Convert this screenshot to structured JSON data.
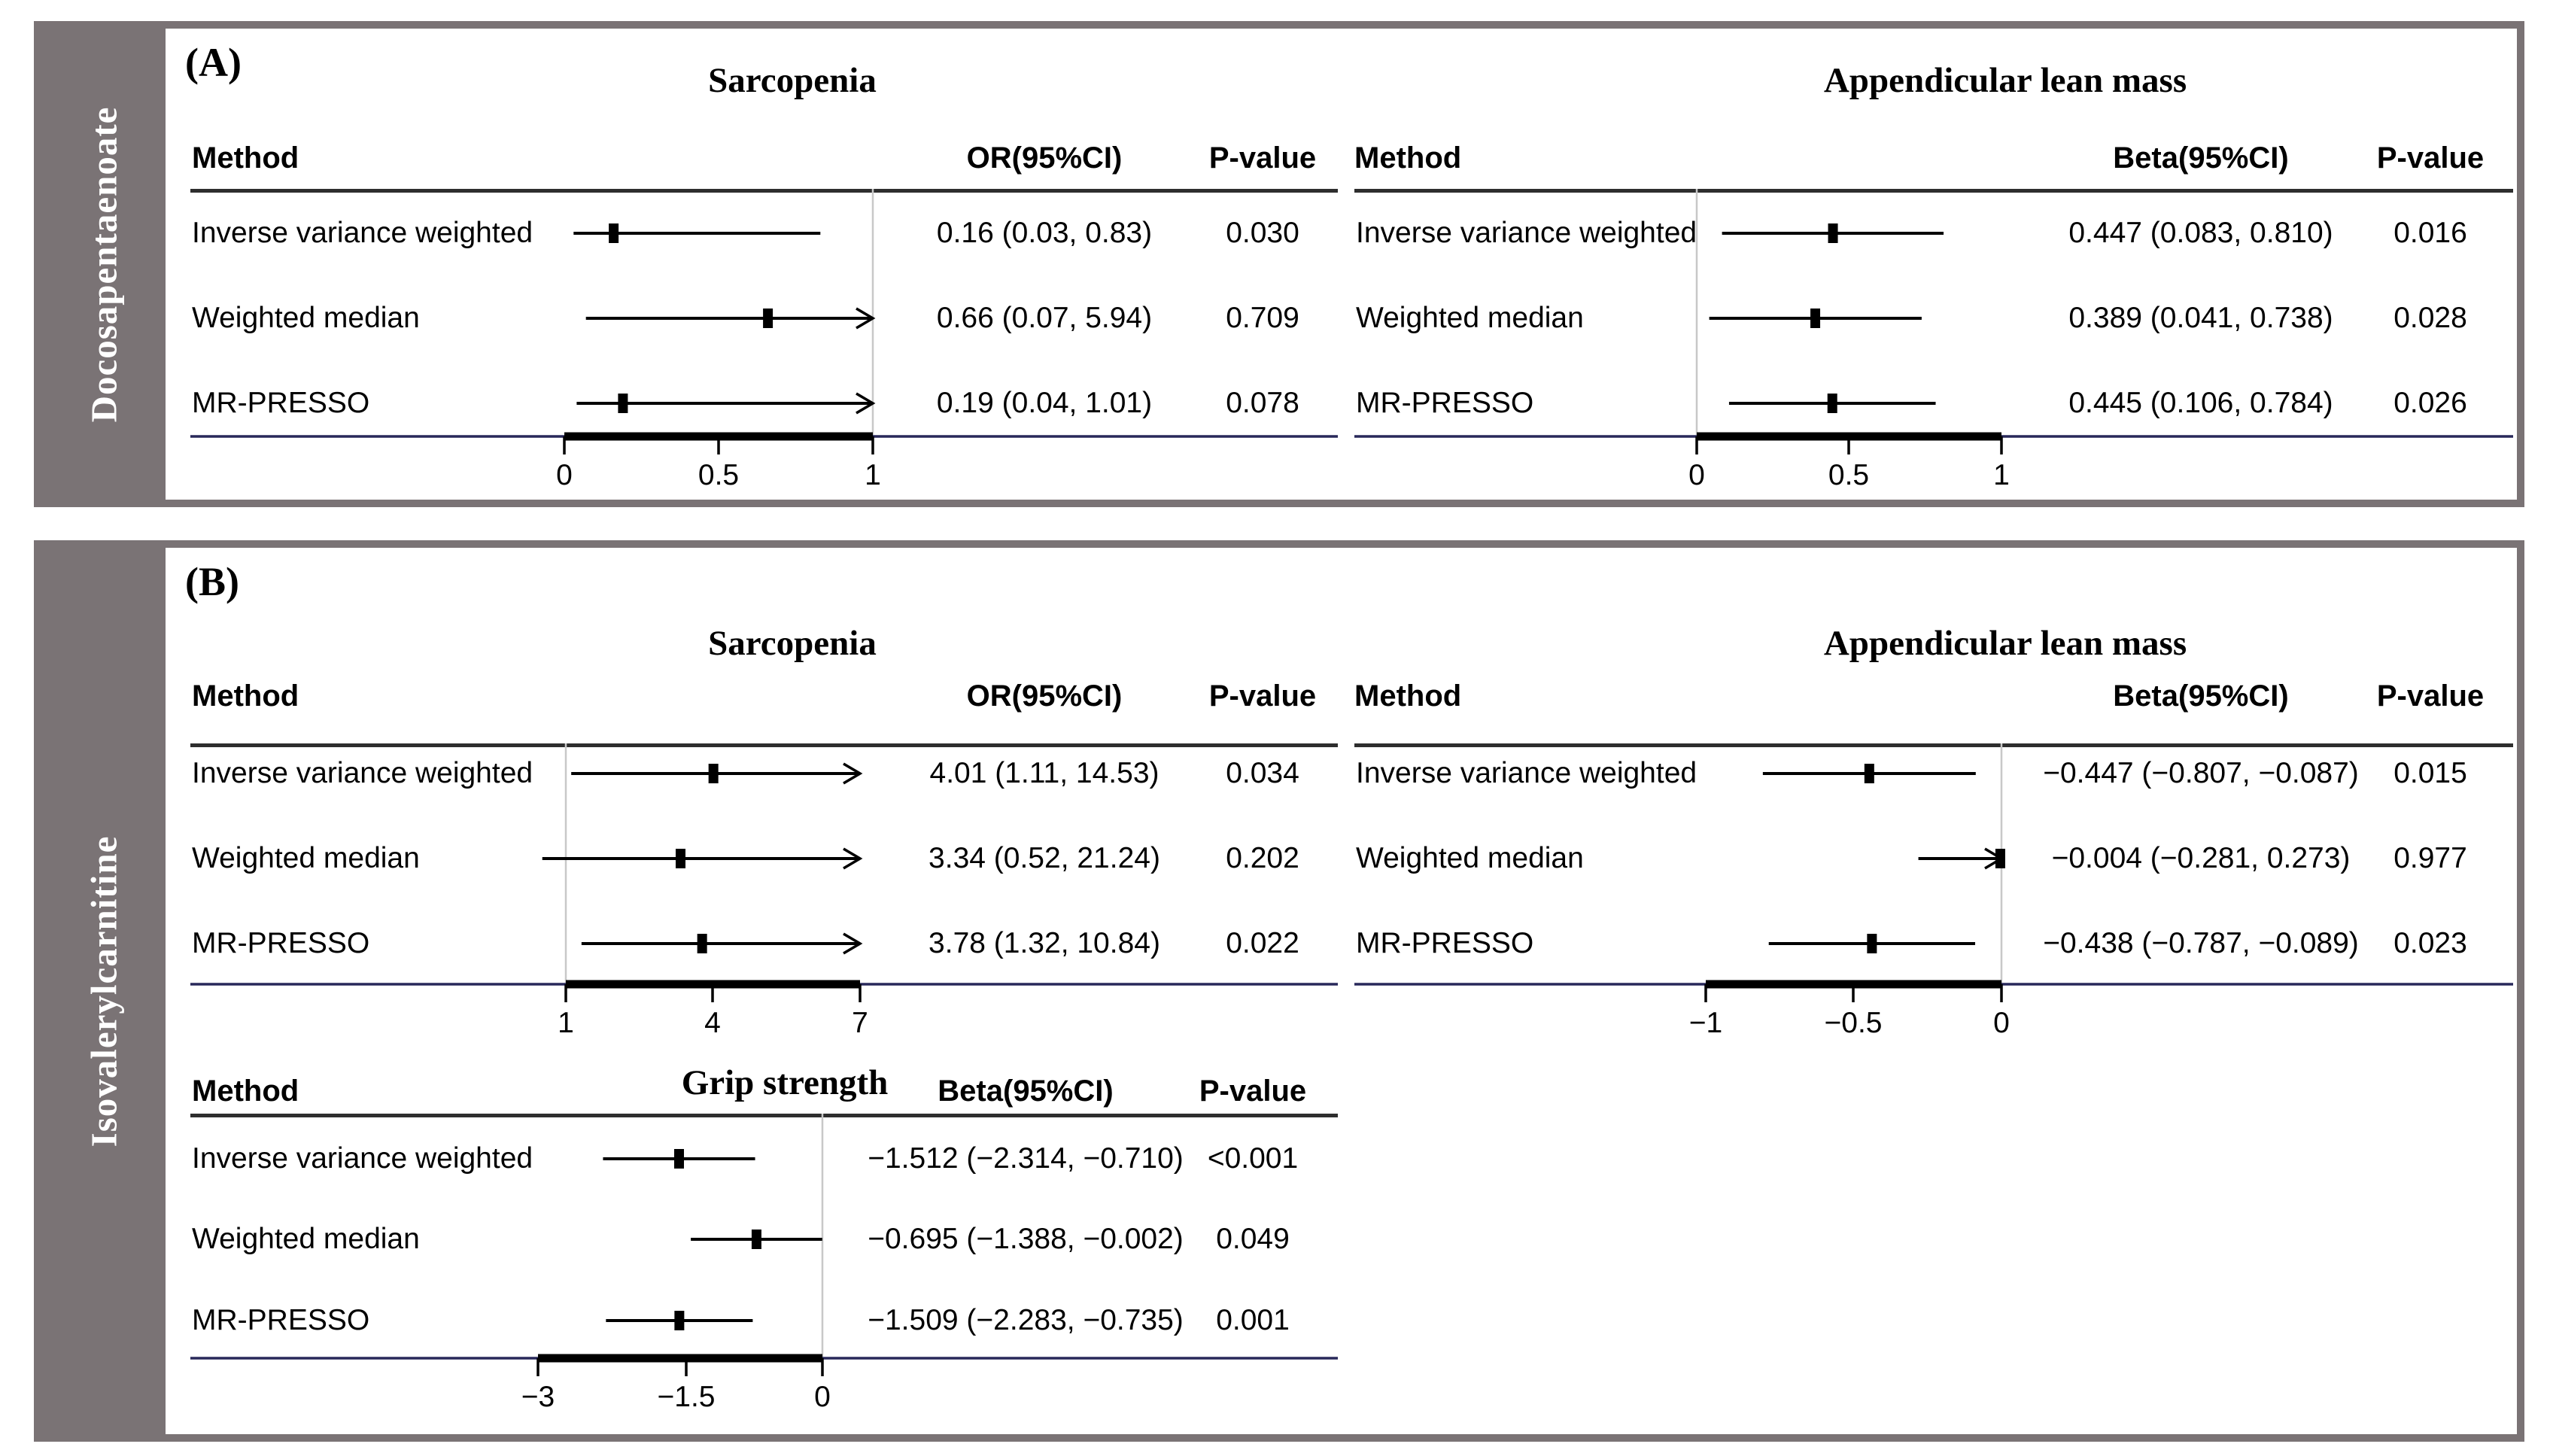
{
  "colors": {
    "frame": "#7a7375",
    "axis_line": "#28285a",
    "reference_line": "#c8c8c8",
    "data_black": "#000000"
  },
  "figure": {
    "panels": [
      {
        "label": "(A)",
        "sidebar": "Docosapentaenoate"
      },
      {
        "label": "(B)",
        "sidebar": "Isovalerylcarnitine"
      }
    ]
  },
  "chart_data": [
    {
      "type": "forest",
      "panel": "A",
      "exposure": "Docosapentaenoate",
      "outcome": "Sarcopenia",
      "columns": [
        "Method",
        "OR(95%CI)",
        "P-value"
      ],
      "axis": {
        "ticks": [
          0,
          0.5,
          1
        ],
        "tick_labels": [
          "0",
          "0.5",
          "1"
        ],
        "refline": 1
      },
      "rows": [
        {
          "method": "Inverse variance weighted",
          "est": 0.16,
          "lo": 0.03,
          "hi": 0.83,
          "effect_text": "0.16 (0.03, 0.83)",
          "p": "0.030"
        },
        {
          "method": "Weighted median",
          "est": 0.66,
          "lo": 0.07,
          "hi": 5.94,
          "effect_text": "0.66 (0.07, 5.94)",
          "p": "0.709"
        },
        {
          "method": "MR-PRESSO",
          "est": 0.19,
          "lo": 0.04,
          "hi": 1.01,
          "effect_text": "0.19 (0.04, 1.01)",
          "p": "0.078"
        }
      ]
    },
    {
      "type": "forest",
      "panel": "A",
      "exposure": "Docosapentaenoate",
      "outcome": "Appendicular lean mass",
      "columns": [
        "Method",
        "Beta(95%CI)",
        "P-value"
      ],
      "axis": {
        "ticks": [
          0,
          0.5,
          1
        ],
        "tick_labels": [
          "0",
          "0.5",
          "1"
        ],
        "refline": 0
      },
      "rows": [
        {
          "method": "Inverse variance weighted",
          "est": 0.447,
          "lo": 0.083,
          "hi": 0.81,
          "effect_text": "0.447 (0.083, 0.810)",
          "p": "0.016"
        },
        {
          "method": "Weighted median",
          "est": 0.389,
          "lo": 0.041,
          "hi": 0.738,
          "effect_text": "0.389 (0.041, 0.738)",
          "p": "0.028"
        },
        {
          "method": "MR-PRESSO",
          "est": 0.445,
          "lo": 0.106,
          "hi": 0.784,
          "effect_text": "0.445 (0.106, 0.784)",
          "p": "0.026"
        }
      ]
    },
    {
      "type": "forest",
      "panel": "B",
      "exposure": "Isovalerylcarnitine",
      "outcome": "Sarcopenia",
      "columns": [
        "Method",
        "OR(95%CI)",
        "P-value"
      ],
      "axis": {
        "ticks": [
          1,
          4,
          7
        ],
        "tick_labels": [
          "1",
          "4",
          "7"
        ],
        "refline": 1
      },
      "rows": [
        {
          "method": "Inverse variance weighted",
          "est": 4.01,
          "lo": 1.11,
          "hi": 14.53,
          "effect_text": "4.01 (1.11, 14.53)",
          "p": "0.034"
        },
        {
          "method": "Weighted median",
          "est": 3.34,
          "lo": 0.52,
          "hi": 21.24,
          "effect_text": "3.34 (0.52, 21.24)",
          "p": "0.202"
        },
        {
          "method": "MR-PRESSO",
          "est": 3.78,
          "lo": 1.32,
          "hi": 10.84,
          "effect_text": "3.78 (1.32, 10.84)",
          "p": "0.022"
        }
      ]
    },
    {
      "type": "forest",
      "panel": "B",
      "exposure": "Isovalerylcarnitine",
      "outcome": "Appendicular lean mass",
      "columns": [
        "Method",
        "Beta(95%CI)",
        "P-value"
      ],
      "axis": {
        "ticks": [
          -1,
          -0.5,
          0
        ],
        "tick_labels": [
          "−1",
          "−0.5",
          "0"
        ],
        "refline": 0
      },
      "rows": [
        {
          "method": "Inverse variance weighted",
          "est": -0.447,
          "lo": -0.807,
          "hi": -0.087,
          "effect_text": "−0.447 (−0.807, −0.087)",
          "p": "0.015"
        },
        {
          "method": "Weighted median",
          "est": -0.004,
          "lo": -0.281,
          "hi": 0.273,
          "effect_text": "−0.004 (−0.281, 0.273)",
          "p": "0.977"
        },
        {
          "method": "MR-PRESSO",
          "est": -0.438,
          "lo": -0.787,
          "hi": -0.089,
          "effect_text": "−0.438 (−0.787, −0.089)",
          "p": "0.023"
        }
      ]
    },
    {
      "type": "forest",
      "panel": "B",
      "exposure": "Isovalerylcarnitine",
      "outcome": "Grip strength",
      "columns": [
        "Method",
        "Beta(95%CI)",
        "P-value"
      ],
      "axis": {
        "ticks": [
          -3,
          -1.5,
          0
        ],
        "tick_labels": [
          "−3",
          "−1.5",
          "0"
        ],
        "refline": 0
      },
      "rows": [
        {
          "method": "Inverse variance weighted",
          "est": -1.512,
          "lo": -2.314,
          "hi": -0.71,
          "effect_text": "−1.512 (−2.314, −0.710)",
          "p": "<0.001"
        },
        {
          "method": "Weighted median",
          "est": -0.695,
          "lo": -1.388,
          "hi": -0.002,
          "effect_text": "−0.695 (−1.388, −0.002)",
          "p": "0.049"
        },
        {
          "method": "MR-PRESSO",
          "est": -1.509,
          "lo": -2.283,
          "hi": -0.735,
          "effect_text": "−1.509 (−2.283, −0.735)",
          "p": "0.001"
        }
      ]
    }
  ]
}
